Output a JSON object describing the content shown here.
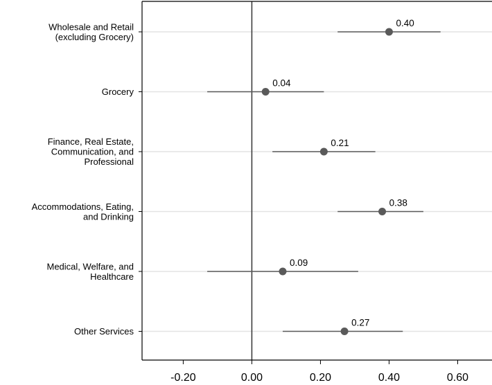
{
  "chart_data": {
    "type": "scatter",
    "title": "",
    "xlabel": "",
    "ylabel": "",
    "xlim": [
      -0.32,
      0.7
    ],
    "xticks": [
      -0.2,
      0.0,
      0.2,
      0.4,
      0.6
    ],
    "xtick_labels": [
      "-0.20",
      "0.00",
      "0.20",
      "0.40",
      "0.60"
    ],
    "reference_line_x": 0.0,
    "grid": "horizontal",
    "categories": [
      [
        "Wholesale and Retail",
        "(excluding Grocery)"
      ],
      [
        "Grocery"
      ],
      [
        "Finance, Real Estate,",
        "Communication, and",
        "Professional"
      ],
      [
        "Accommodations, Eating,",
        "and Drinking"
      ],
      [
        "Medical, Welfare, and",
        "Healthcare"
      ],
      [
        "Other Services"
      ]
    ],
    "estimates": [
      0.4,
      0.04,
      0.21,
      0.38,
      0.09,
      0.27
    ],
    "value_labels": [
      "0.40",
      "0.04",
      "0.21",
      "0.38",
      "0.09",
      "0.27"
    ],
    "ci_low": [
      0.25,
      -0.13,
      0.06,
      0.25,
      -0.13,
      0.09
    ],
    "ci_high": [
      0.55,
      0.21,
      0.36,
      0.5,
      0.31,
      0.44
    ],
    "colors": {
      "marker": "#5a5a5a",
      "ci_line": "#5a5a5a",
      "grid": "#e3e3e3",
      "axis": "#000000"
    }
  }
}
